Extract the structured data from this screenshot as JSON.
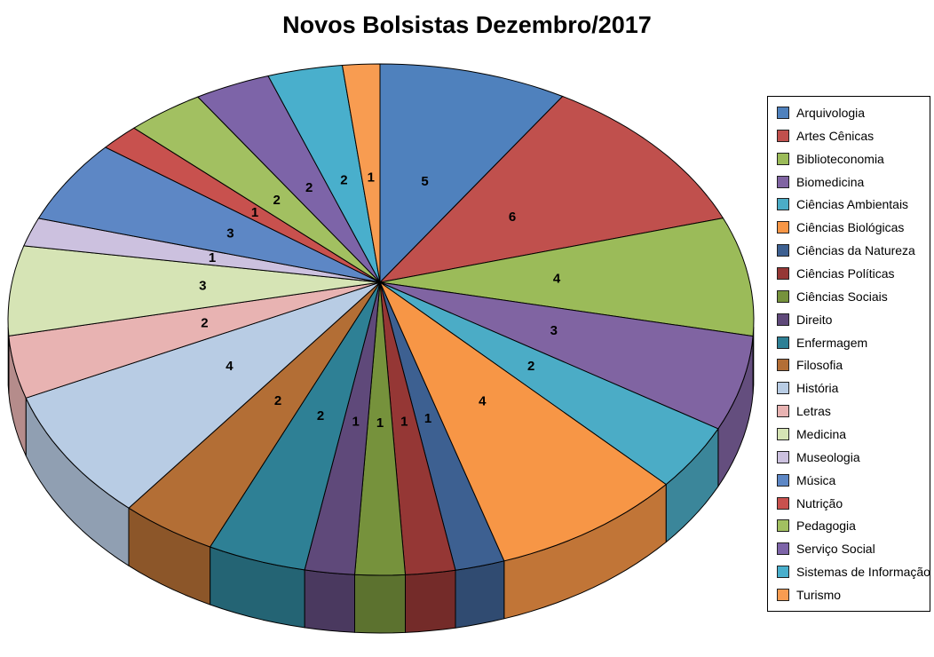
{
  "chart_data": {
    "type": "pie",
    "title": "Novos Bolsistas Dezembro/2017",
    "is_3d": true,
    "start_angle_deg": 0,
    "direction": "clockwise",
    "total": 53,
    "categories": [
      "Arquivologia",
      "Artes Cênicas",
      "Biblioteconomia",
      "Biomedicina",
      "Ciências Ambientais",
      "Ciências Biológicas",
      "Ciências da Natureza",
      "Ciências Políticas",
      "Ciências Sociais",
      "Direito",
      "Enfermagem",
      "Filosofia",
      "História",
      "Letras",
      "Medicina",
      "Museologia",
      "Música",
      "Nutrição",
      "Pedagogia",
      "Serviço Social",
      "Sistemas de Informação",
      "Turismo"
    ],
    "values": [
      5,
      6,
      4,
      3,
      2,
      4,
      1,
      1,
      1,
      1,
      2,
      2,
      4,
      2,
      3,
      1,
      3,
      1,
      2,
      2,
      2,
      1
    ],
    "colors": [
      "#4F81BD",
      "#C0504D",
      "#9BBB59",
      "#8064A2",
      "#4BACC6",
      "#F79646",
      "#3D6091",
      "#953735",
      "#76923C",
      "#5F497A",
      "#2E8095",
      "#B36E35",
      "#B8CCE4",
      "#E8B3B2",
      "#D6E4B5",
      "#CCC1DF",
      "#5D87C5",
      "#C8514E",
      "#A2C061",
      "#7D64A8",
      "#49AFCC",
      "#F89C51"
    ],
    "data_labels": "value",
    "label_color": "#000000",
    "outline_color": "#000000",
    "legend_position": "right",
    "background_color": "#ffffff"
  }
}
